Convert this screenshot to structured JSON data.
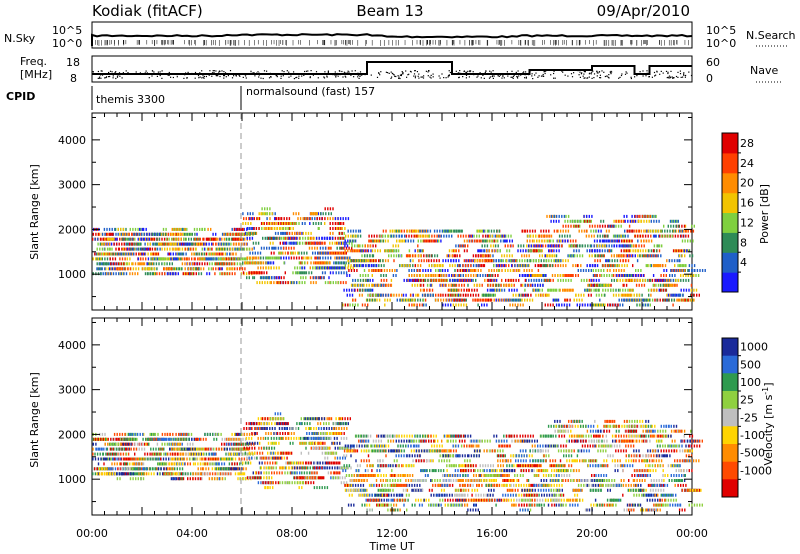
{
  "header": {
    "station": "Kodiak (fitACF)",
    "beam": "Beam 13",
    "date": "09/Apr/2010"
  },
  "strip_labels": {
    "nsky": "N.Sky",
    "nsky_top": "10^5",
    "nsky_bot": "10^0",
    "nsearch": "N.Search",
    "nsearch_top": "10^5",
    "nsearch_bot": "10^0",
    "freq_a": "Freq.",
    "freq_b": "[MHz]",
    "freq_top": "18",
    "freq_bot": "8",
    "nave": "Nave",
    "nave_top": "60",
    "nave_bot": "0",
    "cpid": "CPID",
    "cpid_1": "themis 3300",
    "cpid_2": "normalsound (fast) 157"
  },
  "chart_data": [
    {
      "type": "heatmap",
      "panel": "power",
      "xlabel": "",
      "ylabel": "Slant Range [km]",
      "x_range": [
        "00:00",
        "24:00"
      ],
      "ylim": [
        200,
        4600
      ],
      "y_ticks": [
        1000,
        2000,
        3000,
        4000
      ],
      "colorbar": {
        "label": "Power [dB]",
        "ticks": [
          "4",
          "8",
          "12",
          "16",
          "20",
          "24",
          "28"
        ],
        "colors": [
          "#1a1aff",
          "#1f5fc8",
          "#2e8b57",
          "#7fcf3f",
          "#f2c400",
          "#ff8c00",
          "#ff4000",
          "#e00000"
        ]
      },
      "scatter_bands_km": [
        {
          "x": [
            "00:00",
            "06:00"
          ],
          "y": [
            1000,
            2000
          ]
        },
        {
          "x": [
            "06:00",
            "10:00"
          ],
          "y": [
            800,
            2400
          ]
        },
        {
          "x": [
            "10:00",
            "18:00"
          ],
          "y": [
            300,
            2000
          ]
        },
        {
          "x": [
            "18:00",
            "24:00"
          ],
          "y": [
            300,
            2300
          ]
        }
      ]
    },
    {
      "type": "heatmap",
      "panel": "velocity",
      "xlabel": "Time UT",
      "ylabel": "Slant Range [km]",
      "x_range": [
        "00:00",
        "24:00"
      ],
      "x_ticks": [
        "00:00",
        "04:00",
        "08:00",
        "12:00",
        "16:00",
        "20:00",
        "00:00"
      ],
      "ylim": [
        200,
        4600
      ],
      "y_ticks": [
        1000,
        2000,
        3000,
        4000
      ],
      "colorbar": {
        "label": "Velocity [m s-1]",
        "ticks": [
          "1000",
          "500",
          "100",
          "25",
          "-25",
          "-100",
          "-500",
          "-1000"
        ],
        "colors": [
          "#1a2a9a",
          "#2a6ad8",
          "#2f9a4f",
          "#8fd040",
          "#bfbfbf",
          "#ffd400",
          "#ff8c00",
          "#ff4a00",
          "#e00000"
        ]
      }
    }
  ]
}
